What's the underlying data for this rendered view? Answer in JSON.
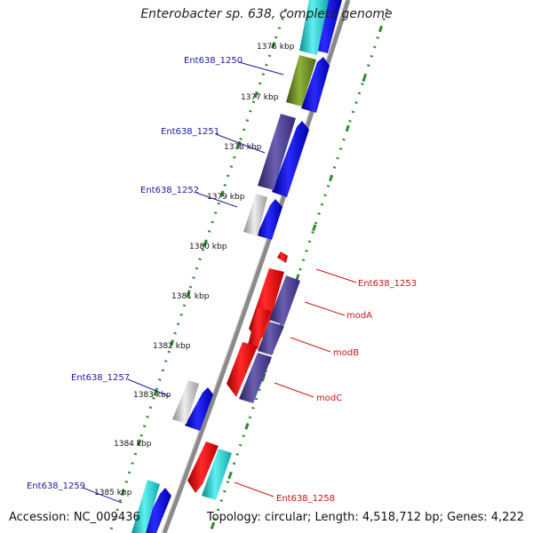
{
  "title": "Enterobacter sp. 638, complete genome",
  "accession": "Accession: NC_009436",
  "summary": "Topology: circular; Length: 4,518,712 bp; Genes: 4,222",
  "colors": {
    "backbone": "#8a8a8a",
    "tick_green": "#2e8b2e",
    "label_blue": "#1a1aa0",
    "label_red": "#cc1111",
    "cds_blue": "#0000ee",
    "cds_red": "#ee1111",
    "cds_purple": "#4b3f8f",
    "cds_cyan": "#22cccc",
    "cds_olive": "#6b8c22",
    "cds_gray": "#bdbdbd"
  },
  "kbp_labels": [
    "1376 kbp",
    "1377 kbp",
    "1378 kbp",
    "1379 kbp",
    "1380 kbp",
    "1381 kbp",
    "1382 kbp",
    "1383 kbp",
    "1384 kbp",
    "1385 kbp"
  ],
  "gene_labels": {
    "g1250": "Ent638_1250",
    "g1251": "Ent638_1251",
    "g1252": "Ent638_1252",
    "g1257": "Ent638_1257",
    "g1259": "Ent638_1259",
    "g1253": "Ent638_1253",
    "modA": "modA",
    "modB": "modB",
    "modC": "modC",
    "g1258": "Ent638_1258"
  }
}
